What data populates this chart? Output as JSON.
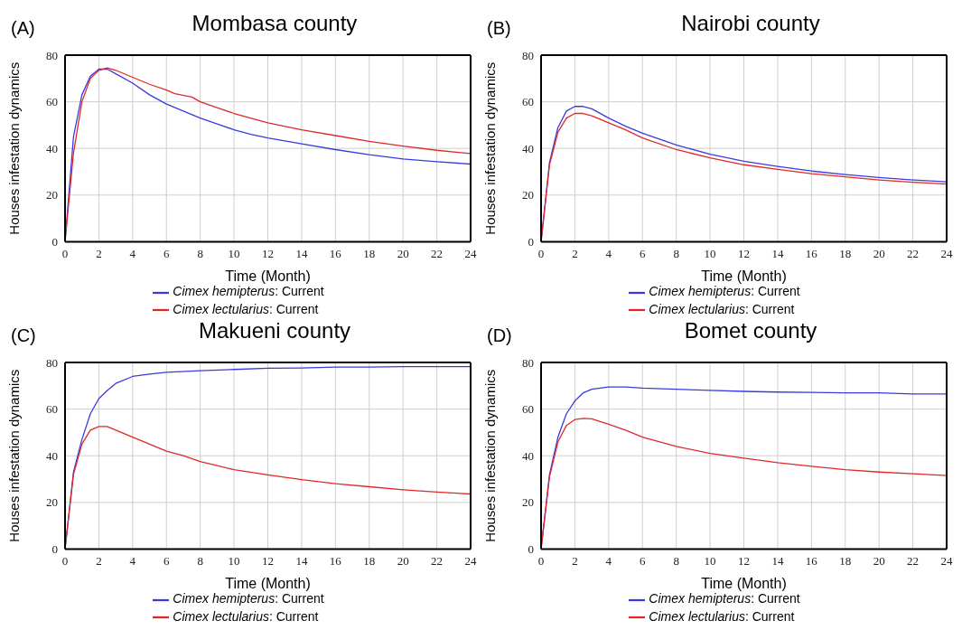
{
  "chart_data": [
    {
      "type": "line",
      "title": "Mombasa county",
      "annotations": [
        "(A)"
      ],
      "xlabel": "Time (Month)",
      "ylabel": "Houses infestation dynamics",
      "xlim": [
        0,
        24
      ],
      "xticks": [
        0,
        2,
        4,
        6,
        8,
        10,
        12,
        14,
        16,
        18,
        20,
        22,
        24
      ],
      "ylim": [
        0,
        80
      ],
      "yticks": [
        0,
        20,
        40,
        60,
        80
      ],
      "grid": true,
      "legend": "bottom",
      "marker": "none",
      "line_style": "solid",
      "series": [
        {
          "name": "Cimex hemipterus: Current",
          "color": "#3a3ae0",
          "x": [
            0,
            0.5,
            1,
            1.5,
            2,
            2.5,
            3,
            4,
            5,
            6,
            7,
            8,
            9,
            10,
            11,
            12,
            14,
            16,
            18,
            20,
            22,
            24
          ],
          "values": [
            0,
            45,
            63,
            71,
            74,
            74,
            72,
            68,
            63,
            59,
            56,
            53,
            50.5,
            48,
            46,
            44.5,
            42,
            39.5,
            37.3,
            35.5,
            34.3,
            33.3
          ]
        },
        {
          "name": "Cimex lectularius: Current",
          "color": "#e02828",
          "x": [
            0,
            0.5,
            1,
            1.5,
            2,
            2.5,
            3,
            4,
            5,
            6,
            6.5,
            7.5,
            8,
            9,
            10,
            12,
            14,
            16,
            18,
            20,
            22,
            24
          ],
          "values": [
            0,
            38,
            60,
            70,
            73.5,
            74.5,
            73.5,
            70.5,
            67.5,
            65,
            63.5,
            62,
            60,
            57.5,
            55,
            51,
            48,
            45.5,
            43,
            41,
            39.2,
            37.8
          ]
        }
      ]
    },
    {
      "type": "line",
      "title": "Nairobi county",
      "annotations": [
        "(B)"
      ],
      "xlabel": "Time (Month)",
      "ylabel": "Houses infestation dynamics",
      "xlim": [
        0,
        24
      ],
      "xticks": [
        0,
        2,
        4,
        6,
        8,
        10,
        12,
        14,
        16,
        18,
        20,
        22,
        24
      ],
      "ylim": [
        0,
        80
      ],
      "yticks": [
        0,
        20,
        40,
        60,
        80
      ],
      "grid": true,
      "legend": "bottom",
      "marker": "none",
      "line_style": "solid",
      "series": [
        {
          "name": "Cimex hemipterus: Current",
          "color": "#3a3ae0",
          "x": [
            0,
            0.5,
            1,
            1.5,
            2,
            2.5,
            3,
            4,
            5,
            6,
            8,
            10,
            12,
            14,
            16,
            18,
            20,
            22,
            24
          ],
          "values": [
            0,
            34,
            49,
            56,
            58,
            58,
            57,
            53,
            49.5,
            46.5,
            41.5,
            37.5,
            34.5,
            32.3,
            30.3,
            28.8,
            27.5,
            26.5,
            25.7
          ]
        },
        {
          "name": "Cimex lectularius: Current",
          "color": "#e02828",
          "x": [
            0,
            0.5,
            1,
            1.5,
            2,
            2.5,
            3,
            4,
            5,
            6,
            8,
            10,
            12,
            14,
            16,
            18,
            20,
            22,
            24
          ],
          "values": [
            0,
            33,
            47,
            53,
            55,
            55,
            54,
            51,
            48,
            44.5,
            39.5,
            36,
            33,
            31,
            29.2,
            27.8,
            26.5,
            25.5,
            24.7
          ]
        }
      ]
    },
    {
      "type": "line",
      "title": "Makueni county",
      "annotations": [
        "(C)"
      ],
      "xlabel": "Time (Month)",
      "ylabel": "Houses infestation dynamics",
      "xlim": [
        0,
        24
      ],
      "xticks": [
        0,
        2,
        4,
        6,
        8,
        10,
        12,
        14,
        16,
        18,
        20,
        22,
        24
      ],
      "ylim": [
        0,
        80
      ],
      "yticks": [
        0,
        20,
        40,
        60,
        80
      ],
      "grid": true,
      "legend": "bottom",
      "marker": "none",
      "line_style": "solid",
      "series": [
        {
          "name": "Cimex hemipterus: Current",
          "color": "#3a3ae0",
          "x": [
            0,
            0.5,
            1,
            1.5,
            2,
            2.5,
            3,
            4,
            5,
            6,
            8,
            10,
            12,
            14,
            16,
            18,
            20,
            22,
            24
          ],
          "values": [
            0,
            33,
            47,
            58,
            64.5,
            68,
            71,
            74,
            75,
            75.8,
            76.5,
            77,
            77.5,
            77.6,
            78,
            78,
            78.2,
            78.2,
            78.2
          ]
        },
        {
          "name": "Cimex lectularius: Current",
          "color": "#e02828",
          "x": [
            0,
            0.5,
            1,
            1.5,
            2,
            2.5,
            3,
            4,
            5,
            6,
            7,
            8,
            10,
            12,
            14,
            16,
            18,
            20,
            22,
            24
          ],
          "values": [
            0,
            32,
            45,
            51,
            52.5,
            52.5,
            51,
            48,
            45,
            42,
            40,
            37.5,
            34,
            31.8,
            29.8,
            28,
            26.7,
            25.4,
            24.4,
            23.6
          ]
        }
      ]
    },
    {
      "type": "line",
      "title": "Bomet county",
      "annotations": [
        "(D)"
      ],
      "xlabel": "Time (Month)",
      "ylabel": "Houses infestation dynamics",
      "xlim": [
        0,
        24
      ],
      "xticks": [
        0,
        2,
        4,
        6,
        8,
        10,
        12,
        14,
        16,
        18,
        20,
        22,
        24
      ],
      "ylim": [
        0,
        80
      ],
      "yticks": [
        0,
        20,
        40,
        60,
        80
      ],
      "grid": true,
      "legend": "bottom",
      "marker": "none",
      "line_style": "solid",
      "series": [
        {
          "name": "Cimex hemipterus: Current",
          "color": "#3a3ae0",
          "x": [
            0,
            0.5,
            1,
            1.5,
            2,
            2.5,
            3,
            4,
            5,
            6,
            8,
            10,
            12,
            14,
            16,
            18,
            20,
            22,
            24
          ],
          "values": [
            0,
            32,
            48,
            58,
            63.5,
            67,
            68.5,
            69.5,
            69.5,
            69,
            68.5,
            68,
            67.6,
            67.3,
            67.2,
            67,
            67,
            66.5,
            66.5
          ]
        },
        {
          "name": "Cimex lectularius: Current",
          "color": "#e02828",
          "x": [
            0,
            0.5,
            1,
            1.5,
            2,
            2.5,
            3,
            4,
            5,
            6,
            8,
            10,
            12,
            14,
            16,
            18,
            20,
            22,
            24
          ],
          "values": [
            0,
            31,
            46,
            53,
            55.5,
            56,
            55.8,
            53.5,
            51,
            48,
            44,
            41,
            39,
            37,
            35.5,
            34,
            33,
            32.3,
            31.5
          ]
        }
      ]
    }
  ]
}
